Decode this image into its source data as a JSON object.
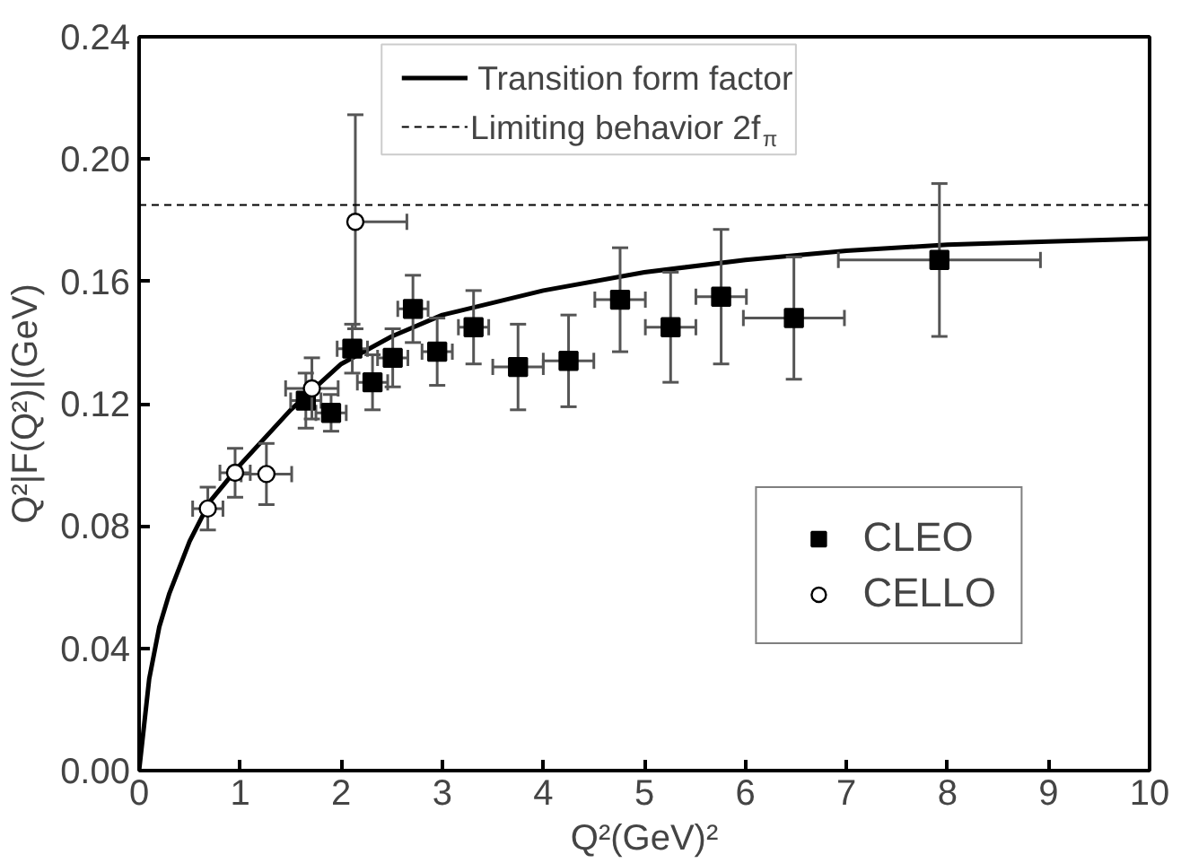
{
  "chart_data": {
    "type": "scatter",
    "xlabel": "Q²(GeV)²",
    "ylabel": "Q²|F(Q²)|(GeV)",
    "xlim": [
      0,
      10
    ],
    "ylim": [
      0,
      0.24
    ],
    "xticks": [
      0,
      1,
      2,
      3,
      4,
      5,
      6,
      7,
      8,
      9,
      10
    ],
    "yticks": [
      {
        "value": 0,
        "label": "0.00"
      },
      {
        "value": 0.04,
        "label": "0.04"
      },
      {
        "value": 0.08,
        "label": "0.08"
      },
      {
        "value": 0.12,
        "label": "0.12"
      },
      {
        "value": 0.16,
        "label": "0.16"
      },
      {
        "value": 0.2,
        "label": "0.20"
      },
      {
        "value": 0.24,
        "label": "0.24"
      }
    ],
    "grid": false,
    "legend": "right",
    "ref_lines": [
      {
        "axis": "y",
        "value": 0.185,
        "label": "Limiting behavior 2f$_{π}$",
        "color": "#000000",
        "line_style": "dashed"
      }
    ],
    "series": [
      {
        "name": "Transition form factor",
        "type": "line",
        "color": "#000000",
        "marker": "none",
        "line_style": "solid",
        "x": [
          0,
          0.05,
          0.1,
          0.2,
          0.3,
          0.5,
          0.7,
          1,
          1.5,
          2,
          2.5,
          3,
          4,
          5,
          6,
          7,
          8,
          9,
          10
        ],
        "values": [
          0,
          0.015,
          0.03,
          0.047,
          0.058,
          0.075,
          0.088,
          0.1,
          0.118,
          0.133,
          0.142,
          0.149,
          0.157,
          0.163,
          0.167,
          0.17,
          0.172,
          0.173,
          0.174
        ]
      },
      {
        "name": "CLEO",
        "color": "#000000",
        "marker": "square",
        "x": [
          1.65,
          1.9,
          2.11,
          2.31,
          2.51,
          2.71,
          2.95,
          3.31,
          3.75,
          4.25,
          4.76,
          5.26,
          5.76,
          6.48,
          7.92
        ],
        "values": [
          0.121,
          0.117,
          0.138,
          0.127,
          0.135,
          0.151,
          0.137,
          0.145,
          0.132,
          0.134,
          0.154,
          0.145,
          0.155,
          0.148,
          0.167
        ],
        "errors": [
          0.009,
          0.006,
          0.008,
          0.009,
          0.0095,
          0.011,
          0.011,
          0.012,
          0.014,
          0.015,
          0.017,
          0.018,
          0.022,
          0.02,
          0.025
        ],
        "xerrors": [
          0.15,
          0.15,
          0.15,
          0.15,
          0.15,
          0.15,
          0.15,
          0.15,
          0.25,
          0.25,
          0.25,
          0.25,
          0.25,
          0.5,
          1.0
        ]
      },
      {
        "name": "CELLO",
        "color": "#000000",
        "marker": "circle",
        "x": [
          0.68,
          0.95,
          1.26,
          1.71,
          2.14
        ],
        "values": [
          0.0857,
          0.0974,
          0.097,
          0.125,
          0.1795
        ],
        "errors": [
          0.007,
          0.008,
          0.01,
          0.01,
          0.035
        ],
        "xerrors": [
          0.15,
          0.15,
          0.25,
          0.26,
          [
            2.14,
            2.65
          ]
        ]
      }
    ]
  }
}
